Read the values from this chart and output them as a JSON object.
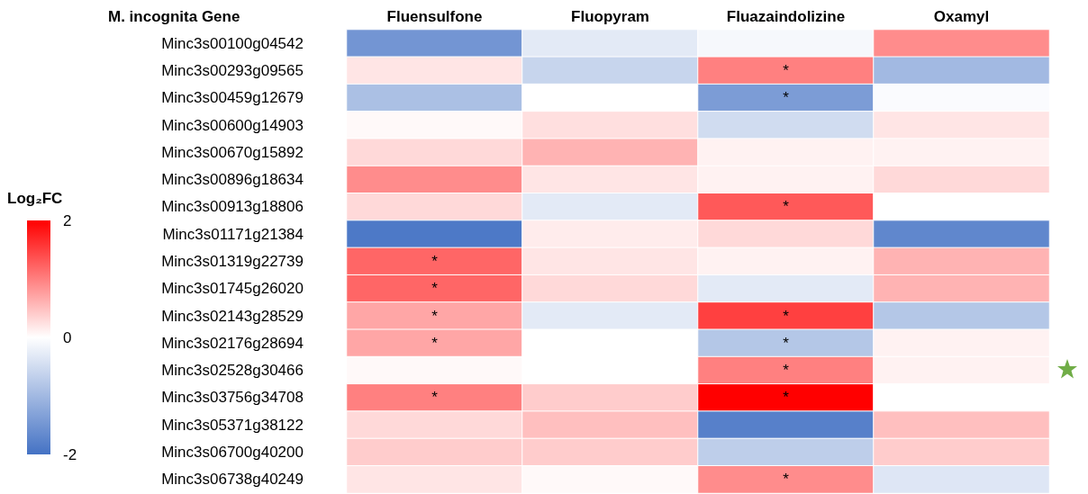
{
  "chart_data": {
    "type": "heatmap",
    "ylabel": "M. incognita Gene",
    "clabel": "Log₂FC",
    "categories": [
      "Fluensulfone",
      "Fluopyram",
      "Fluazaindolizine",
      "Oxamyl"
    ],
    "y_categories": [
      "Minc3s00100g04542",
      "Minc3s00293g09565",
      "Minc3s00459g12679",
      "Minc3s00600g14903",
      "Minc3s00670g15892",
      "Minc3s00896g18634",
      "Minc3s00913g18806",
      "Minc3s01171g21384",
      "Minc3s01319g22739",
      "Minc3s01745g26020",
      "Minc3s02143g28529",
      "Minc3s02176g28694",
      "Minc3s02528g30466",
      "Minc3s03756g34708",
      "Minc3s05371g38122",
      "Minc3s06700g40200",
      "Minc3s06738g40249"
    ],
    "cells": [
      [
        -1.5,
        -0.3,
        -0.1,
        0.9
      ],
      [
        0.2,
        -0.6,
        1.0,
        -1.0
      ],
      [
        -0.9,
        0.0,
        -1.4,
        -0.05
      ],
      [
        0.05,
        0.25,
        -0.5,
        0.2
      ],
      [
        0.3,
        0.6,
        0.1,
        0.1
      ],
      [
        0.9,
        0.2,
        0.1,
        0.3
      ],
      [
        0.3,
        -0.3,
        1.3,
        0.0
      ],
      [
        -1.9,
        0.15,
        0.3,
        -1.7
      ],
      [
        1.2,
        0.2,
        0.1,
        0.6
      ],
      [
        1.2,
        0.3,
        -0.3,
        0.6
      ],
      [
        0.7,
        -0.3,
        1.5,
        -0.8
      ],
      [
        0.7,
        0.0,
        -0.8,
        0.1
      ],
      [
        0.05,
        0.0,
        1.0,
        0.1
      ],
      [
        1.0,
        0.4,
        2.0,
        0.0
      ],
      [
        0.3,
        0.5,
        -1.8,
        0.5
      ],
      [
        0.4,
        0.4,
        -0.7,
        0.4
      ],
      [
        0.2,
        0.05,
        0.9,
        -0.35
      ]
    ],
    "cell_labels": [
      [
        null,
        null,
        null,
        null
      ],
      [
        null,
        null,
        "*",
        null
      ],
      [
        null,
        null,
        "*",
        null
      ],
      [
        null,
        null,
        null,
        null
      ],
      [
        null,
        null,
        null,
        null
      ],
      [
        null,
        null,
        null,
        null
      ],
      [
        null,
        null,
        "*",
        null
      ],
      [
        null,
        null,
        null,
        null
      ],
      [
        "*",
        null,
        null,
        null
      ],
      [
        "*",
        null,
        null,
        null
      ],
      [
        "*",
        null,
        "*",
        null
      ],
      [
        "*",
        null,
        "*",
        null
      ],
      [
        null,
        null,
        "*",
        null
      ],
      [
        "*",
        null,
        "*",
        null
      ],
      [
        null,
        null,
        null,
        null
      ],
      [
        null,
        null,
        null,
        null
      ],
      [
        null,
        null,
        "*",
        null
      ]
    ],
    "clim": [
      -2,
      2
    ],
    "cticks": [
      -2,
      0,
      2
    ]
  }
}
